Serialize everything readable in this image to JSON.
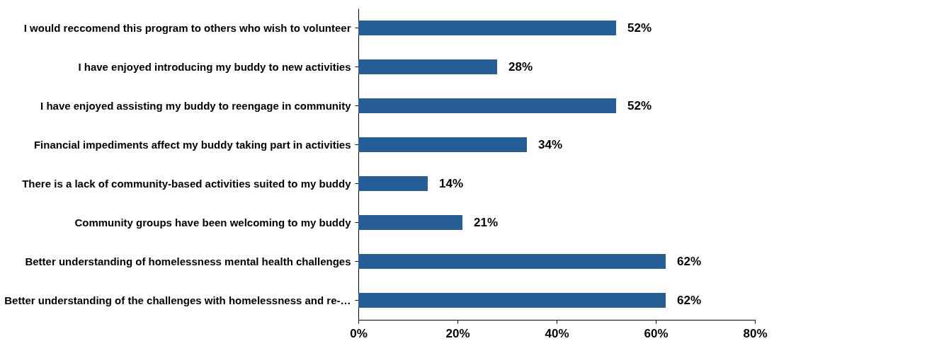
{
  "chart_data": {
    "type": "bar",
    "orientation": "horizontal",
    "categories": [
      "I would reccomend this program to others who wish to volunteer",
      "I have enjoyed introducing my buddy to new activities",
      "I have enjoyed assisting my buddy to reengage in community",
      "Financial impediments affect my buddy taking part in activities",
      "There is a lack of community-based activities suited to my buddy",
      "Community groups have been welcoming to my buddy",
      "Better understanding of homelessness mental health challenges",
      "Better understanding of the challenges with homelessness and re-…"
    ],
    "values": [
      52,
      28,
      52,
      34,
      14,
      21,
      62,
      62
    ],
    "value_labels": [
      "52%",
      "28%",
      "52%",
      "34%",
      "14%",
      "21%",
      "62%",
      "62%"
    ],
    "color": "#255e96",
    "xlim": [
      0,
      80
    ],
    "xticks": [
      {
        "value": 0,
        "label": "0%"
      },
      {
        "value": 20,
        "label": "20%"
      },
      {
        "value": 40,
        "label": "40%"
      },
      {
        "value": 60,
        "label": "60%"
      },
      {
        "value": 80,
        "label": "80%"
      }
    ],
    "grid": false
  }
}
